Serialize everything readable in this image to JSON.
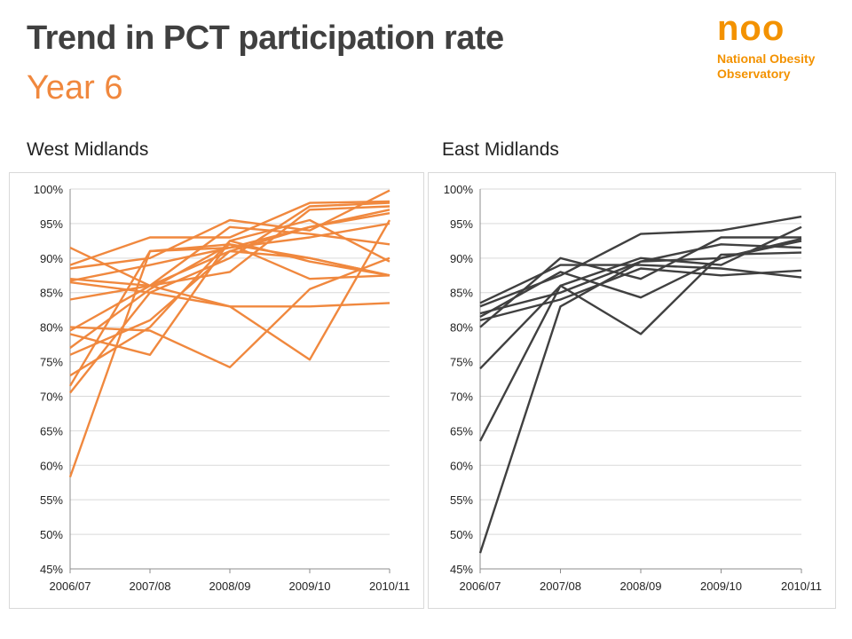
{
  "header": {
    "title": "Trend in PCT participation rate",
    "subtitle": "Year 6"
  },
  "logo": {
    "mark": "noo",
    "name_line1": "National Obesity",
    "name_line2": "Observatory",
    "color": "#f39200"
  },
  "chart_data": [
    {
      "type": "line",
      "panel_label": "West Midlands",
      "line_color": "#f0883e",
      "categories": [
        "2006/07",
        "2007/08",
        "2008/09",
        "2009/10",
        "2010/11"
      ],
      "ylim": [
        45,
        100
      ],
      "yticks": [
        "45%",
        "50%",
        "55%",
        "60%",
        "65%",
        "70%",
        "75%",
        "80%",
        "85%",
        "90%",
        "95%",
        "100%"
      ],
      "grid": true,
      "series": [
        {
          "values": [
            58.3,
            91.0,
            92.0,
            90.0,
            87.5
          ]
        },
        {
          "values": [
            91.5,
            86.0,
            83.0,
            83.0,
            83.5
          ]
        },
        {
          "values": [
            89.0,
            93.0,
            93.0,
            98.0,
            98.2
          ]
        },
        {
          "values": [
            88.5,
            90.0,
            95.5,
            94.0,
            99.8
          ]
        },
        {
          "values": [
            87.0,
            86.0,
            91.0,
            90.0,
            87.5
          ]
        },
        {
          "values": [
            86.7,
            89.0,
            91.5,
            93.0,
            95.0
          ]
        },
        {
          "values": [
            86.5,
            85.0,
            83.0,
            75.3,
            95.5
          ]
        },
        {
          "values": [
            84.0,
            86.0,
            88.0,
            97.0,
            97.5
          ]
        },
        {
          "values": [
            80.0,
            79.5,
            74.2,
            85.5,
            90.0
          ]
        },
        {
          "values": [
            79.5,
            86.0,
            94.5,
            93.5,
            92.0
          ]
        },
        {
          "values": [
            79.0,
            76.0,
            92.5,
            89.5,
            87.5
          ]
        },
        {
          "values": [
            77.0,
            85.5,
            92.0,
            87.0,
            87.5
          ]
        },
        {
          "values": [
            76.0,
            81.0,
            91.0,
            94.5,
            96.5
          ]
        },
        {
          "values": [
            73.0,
            80.0,
            92.5,
            95.5,
            89.5
          ]
        },
        {
          "values": [
            71.5,
            91.0,
            91.5,
            94.5,
            97.0
          ]
        },
        {
          "values": [
            70.5,
            85.0,
            90.0,
            97.5,
            98.0
          ]
        }
      ]
    },
    {
      "type": "line",
      "panel_label": "East Midlands",
      "line_color": "#404040",
      "categories": [
        "2006/07",
        "2007/08",
        "2008/09",
        "2009/10",
        "2010/11"
      ],
      "ylim": [
        45,
        100
      ],
      "yticks": [
        "45%",
        "50%",
        "55%",
        "60%",
        "65%",
        "70%",
        "75%",
        "80%",
        "85%",
        "90%",
        "95%",
        "100%"
      ],
      "grid": true,
      "series": [
        {
          "values": [
            83.5,
            89.0,
            89.0,
            88.5,
            87.2
          ]
        },
        {
          "values": [
            83.0,
            87.5,
            93.5,
            94.0,
            96.0
          ]
        },
        {
          "values": [
            82.0,
            85.0,
            89.5,
            92.0,
            91.5
          ]
        },
        {
          "values": [
            81.5,
            88.0,
            84.3,
            90.0,
            92.5
          ]
        },
        {
          "values": [
            81.0,
            84.0,
            88.5,
            87.5,
            88.2
          ]
        },
        {
          "values": [
            80.0,
            90.0,
            87.0,
            93.0,
            93.0
          ]
        },
        {
          "values": [
            74.0,
            86.0,
            79.0,
            90.5,
            90.8
          ]
        },
        {
          "values": [
            63.5,
            86.0,
            90.0,
            89.0,
            94.5
          ]
        },
        {
          "values": [
            47.3,
            83.0,
            89.5,
            90.0,
            92.8
          ]
        }
      ]
    }
  ]
}
